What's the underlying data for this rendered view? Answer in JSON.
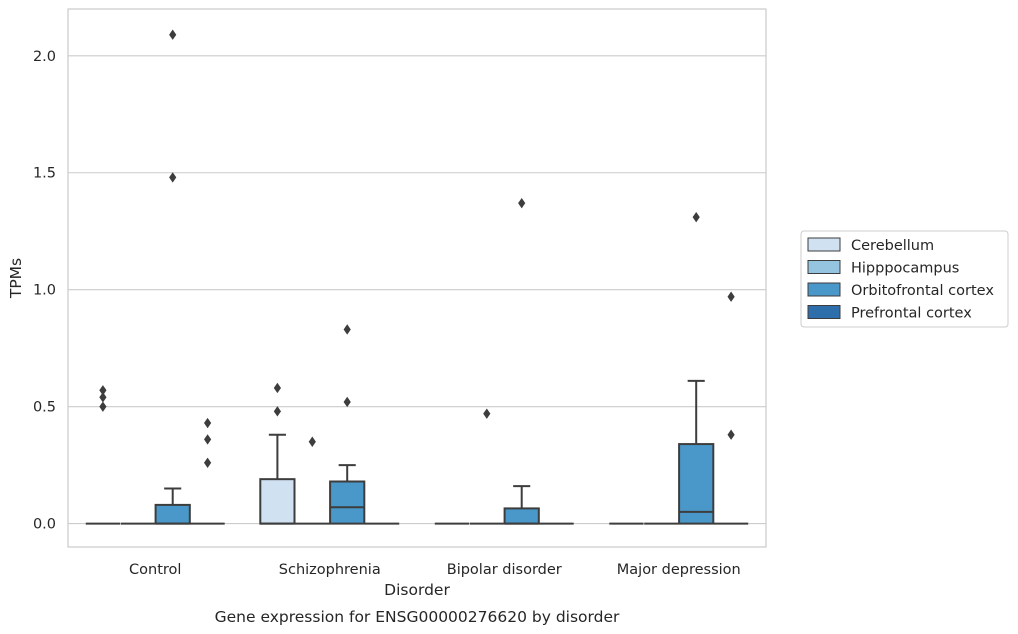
{
  "chart_data": {
    "type": "box",
    "title": "",
    "caption": "Gene expression for ENSG00000276620 by disorder",
    "xlabel": "Disorder",
    "ylabel": "TPMs",
    "categories": [
      "Control",
      "Schizophrenia",
      "Bipolar disorder",
      "Major depression"
    ],
    "ylim": [
      -0.1,
      2.2
    ],
    "yticks": [
      0.0,
      0.5,
      1.0,
      1.5,
      2.0
    ],
    "ytick_labels": [
      "0.0",
      "0.5",
      "1.0",
      "1.5",
      "2.0"
    ],
    "grid": "horizontal",
    "legend": {
      "placement": "outside-right"
    },
    "series": [
      {
        "name": "Cerebellum",
        "color": "#d0e1f2",
        "boxes": [
          {
            "q1": 0,
            "median": 0,
            "q3": 0,
            "whislo": 0,
            "whishi": 0,
            "fliers": [
              0.5,
              0.54,
              0.57
            ]
          },
          {
            "q1": 0,
            "median": 0,
            "q3": 0.19,
            "whislo": 0,
            "whishi": 0.38,
            "fliers": [
              0.48,
              0.58
            ]
          },
          {
            "q1": 0,
            "median": 0,
            "q3": 0,
            "whislo": 0,
            "whishi": 0,
            "fliers": []
          },
          {
            "q1": 0,
            "median": 0,
            "q3": 0,
            "whislo": 0,
            "whishi": 0,
            "fliers": []
          }
        ]
      },
      {
        "name": "Hipppocampus",
        "color": "#94c4df",
        "boxes": [
          {
            "q1": 0,
            "median": 0,
            "q3": 0,
            "whislo": 0,
            "whishi": 0,
            "fliers": []
          },
          {
            "q1": 0,
            "median": 0,
            "q3": 0,
            "whislo": 0,
            "whishi": 0,
            "fliers": [
              0.35
            ]
          },
          {
            "q1": 0,
            "median": 0,
            "q3": 0,
            "whislo": 0,
            "whishi": 0,
            "fliers": [
              0.47
            ]
          },
          {
            "q1": 0,
            "median": 0,
            "q3": 0,
            "whislo": 0,
            "whishi": 0,
            "fliers": []
          }
        ]
      },
      {
        "name": "Orbitofrontal cortex",
        "color": "#4a98c9",
        "boxes": [
          {
            "q1": 0,
            "median": 0,
            "q3": 0.08,
            "whislo": 0,
            "whishi": 0.15,
            "fliers": [
              1.48,
              2.09
            ]
          },
          {
            "q1": 0,
            "median": 0.07,
            "q3": 0.18,
            "whislo": 0,
            "whishi": 0.25,
            "fliers": [
              0.52,
              0.83
            ]
          },
          {
            "q1": 0,
            "median": 0,
            "q3": 0.065,
            "whislo": 0,
            "whishi": 0.16,
            "fliers": [
              1.37
            ]
          },
          {
            "q1": 0,
            "median": 0.05,
            "q3": 0.34,
            "whislo": 0,
            "whishi": 0.61,
            "fliers": [
              1.31
            ]
          }
        ]
      },
      {
        "name": "Prefrontal cortex",
        "color": "#2e6fab",
        "boxes": [
          {
            "q1": 0,
            "median": 0,
            "q3": 0,
            "whislo": 0,
            "whishi": 0,
            "fliers": [
              0.26,
              0.36,
              0.43
            ]
          },
          {
            "q1": 0,
            "median": 0,
            "q3": 0,
            "whislo": 0,
            "whishi": 0,
            "fliers": []
          },
          {
            "q1": 0,
            "median": 0,
            "q3": 0,
            "whislo": 0,
            "whishi": 0,
            "fliers": []
          },
          {
            "q1": 0,
            "median": 0,
            "q3": 0,
            "whislo": 0,
            "whishi": 0,
            "fliers": [
              0.38,
              0.97
            ]
          }
        ]
      }
    ]
  }
}
